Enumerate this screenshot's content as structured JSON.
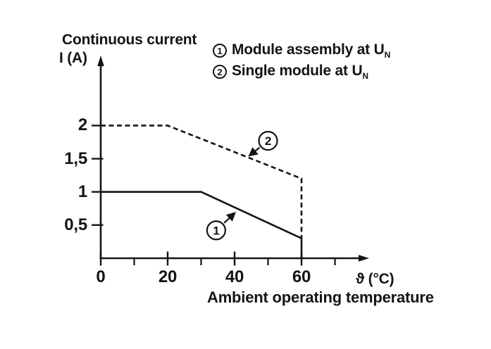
{
  "chart_data": {
    "type": "line",
    "title": "Continuous current",
    "ylabel": "I (A)",
    "xlabel": "ϑ (°C)",
    "x_caption": "Ambient operating temperature",
    "xlim": [
      0,
      80
    ],
    "ylim": [
      0,
      3
    ],
    "grid": false,
    "legend_position": "top-right",
    "decimal_separator": ",",
    "y_ticks": [
      {
        "value": 2,
        "label": "2"
      },
      {
        "value": 1.5,
        "label": "1,5"
      },
      {
        "value": 1,
        "label": "1"
      },
      {
        "value": 0.5,
        "label": "0,5"
      }
    ],
    "x_ticks_major": [
      {
        "value": 0,
        "label": "0"
      },
      {
        "value": 20,
        "label": "20"
      },
      {
        "value": 40,
        "label": "40"
      },
      {
        "value": 60,
        "label": "60"
      }
    ],
    "x_ticks_minor": [
      10,
      30,
      50,
      70
    ],
    "series": [
      {
        "id": "1",
        "name": "Module assembly at U_N",
        "line_style": "solid",
        "points": [
          [
            0,
            1
          ],
          [
            30,
            1
          ],
          [
            60,
            0.3
          ],
          [
            60,
            0
          ]
        ]
      },
      {
        "id": "2",
        "name": "Single module at U_N",
        "line_style": "dashed",
        "points": [
          [
            0,
            2
          ],
          [
            20,
            2
          ],
          [
            60,
            1.2
          ],
          [
            60,
            0.3
          ]
        ]
      }
    ],
    "legend": [
      {
        "marker": "1",
        "label": "Module assembly at U",
        "subscript": "N"
      },
      {
        "marker": "2",
        "label": "Single module at U",
        "subscript": "N"
      }
    ],
    "annotations": [
      {
        "marker": "1",
        "circle_at": [
          34.5,
          0.42
        ],
        "arrow_tip": [
          40,
          0.68
        ]
      },
      {
        "marker": "2",
        "circle_at": [
          50,
          1.77
        ],
        "arrow_tip": [
          44.5,
          1.55
        ]
      }
    ],
    "line_color": "#141414",
    "background": "#ffffff"
  }
}
